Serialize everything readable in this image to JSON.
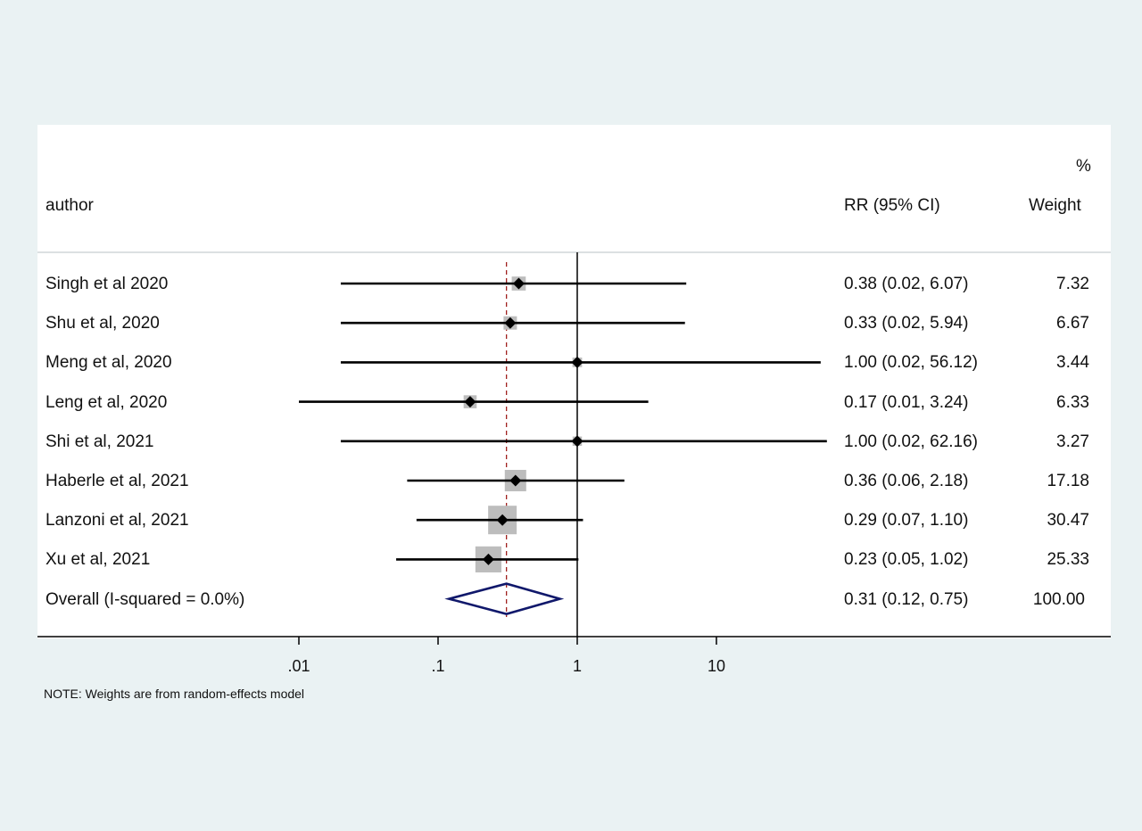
{
  "header": {
    "author_label": "author",
    "effect_label": "RR (95% CI)",
    "weight_pct_label": "%",
    "weight_label": "Weight"
  },
  "footer": {
    "note": "NOTE: Weights are from random-effects model"
  },
  "chart_data": {
    "type": "forest",
    "x_scale": "log",
    "x_ticks": [
      0.01,
      0.1,
      1,
      10
    ],
    "x_tick_labels": [
      ".01",
      ".1",
      "1",
      "10"
    ],
    "null_line": 1,
    "overall_line": 0.31,
    "colors": {
      "marker": "#000000",
      "weight_box": "#bdbdbd",
      "overall_diamond": "#10186b",
      "overall_line": "#a0201e",
      "axis": "#000000",
      "grid": "#d0d6d8"
    },
    "studies": [
      {
        "label": "Singh et al 2020",
        "rr": 0.38,
        "lower": 0.02,
        "upper": 6.07,
        "ci_text": "0.38 (0.02, 6.07)",
        "weight": 7.32,
        "weight_text": "7.32"
      },
      {
        "label": "Shu et al, 2020",
        "rr": 0.33,
        "lower": 0.02,
        "upper": 5.94,
        "ci_text": "0.33 (0.02, 5.94)",
        "weight": 6.67,
        "weight_text": "6.67"
      },
      {
        "label": "Meng et al, 2020",
        "rr": 1.0,
        "lower": 0.02,
        "upper": 56.12,
        "ci_text": "1.00 (0.02, 56.12)",
        "weight": 3.44,
        "weight_text": "3.44"
      },
      {
        "label": "Leng et al, 2020",
        "rr": 0.17,
        "lower": 0.01,
        "upper": 3.24,
        "ci_text": "0.17 (0.01, 3.24)",
        "weight": 6.33,
        "weight_text": "6.33"
      },
      {
        "label": "Shi et al, 2021",
        "rr": 1.0,
        "lower": 0.02,
        "upper": 62.16,
        "ci_text": "1.00 (0.02, 62.16)",
        "weight": 3.27,
        "weight_text": "3.27"
      },
      {
        "label": "Haberle et al, 2021",
        "rr": 0.36,
        "lower": 0.06,
        "upper": 2.18,
        "ci_text": "0.36 (0.06, 2.18)",
        "weight": 17.18,
        "weight_text": "17.18"
      },
      {
        "label": "Lanzoni et al, 2021",
        "rr": 0.29,
        "lower": 0.07,
        "upper": 1.1,
        "ci_text": "0.29 (0.07, 1.10)",
        "weight": 30.47,
        "weight_text": "30.47"
      },
      {
        "label": "Xu et al, 2021",
        "rr": 0.23,
        "lower": 0.05,
        "upper": 1.02,
        "ci_text": "0.23 (0.05, 1.02)",
        "weight": 25.33,
        "weight_text": "25.33"
      }
    ],
    "overall": {
      "label": "Overall  (I-squared = 0.0%)",
      "rr": 0.31,
      "lower": 0.12,
      "upper": 0.75,
      "ci_text": "0.31 (0.12, 0.75)",
      "weight_text": "100.00"
    }
  }
}
